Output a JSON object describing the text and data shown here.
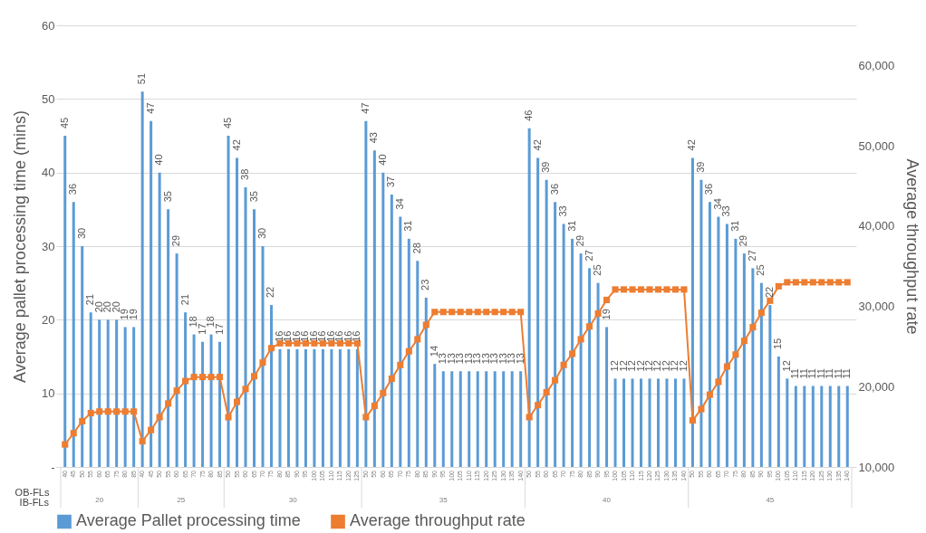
{
  "chart_data": {
    "type": "bar",
    "xlabel": "OB-FLs",
    "ylabel": "Average pallet processing time (mins)",
    "y2label": "Average throughput rate",
    "categories": [
      "40",
      "45",
      "50",
      "55",
      "60",
      "65",
      "75",
      "80",
      "85",
      "40",
      "45",
      "50",
      "55",
      "60",
      "65",
      "70",
      "75",
      "80",
      "85",
      "50",
      "55",
      "60",
      "65",
      "70",
      "75",
      "80",
      "85",
      "90",
      "95",
      "100",
      "105",
      "110",
      "115",
      "120",
      "125",
      "50",
      "55",
      "60",
      "65",
      "70",
      "75",
      "80",
      "85",
      "90",
      "95",
      "100",
      "105",
      "110",
      "115",
      "120",
      "125",
      "130",
      "135",
      "140",
      "50",
      "55",
      "60",
      "65",
      "70",
      "75",
      "80",
      "85",
      "90",
      "95",
      "100",
      "105",
      "110",
      "115",
      "120",
      "125",
      "130",
      "135",
      "140",
      "50",
      "55",
      "60",
      "65",
      "70",
      "75",
      "80",
      "85",
      "90",
      "95",
      "100",
      "105",
      "110",
      "115",
      "120",
      "125",
      "130",
      "135",
      "140"
    ],
    "series": [
      {
        "name": "Average Pallet processing time",
        "color": "#5b9bd5",
        "values": [
          45,
          36,
          30,
          21,
          20,
          20,
          20,
          19,
          19,
          51,
          47,
          40,
          35,
          29,
          21,
          18,
          17,
          18,
          17,
          45,
          42,
          38,
          35,
          30,
          22,
          16,
          16,
          16,
          16,
          16,
          16,
          16,
          16,
          16,
          16,
          47,
          43,
          40,
          37,
          34,
          31,
          28,
          23,
          14,
          13,
          13,
          13,
          13,
          13,
          13,
          13,
          13,
          13,
          13,
          46,
          42,
          39,
          36,
          33,
          31,
          29,
          27,
          25,
          19,
          12,
          12,
          12,
          12,
          12,
          12,
          12,
          12,
          12,
          42,
          39,
          36,
          34,
          33,
          31,
          29,
          27,
          25,
          22,
          15,
          12,
          11,
          11,
          11,
          11,
          11,
          11,
          11
        ],
        "value_labels": [
          "45",
          "36",
          "30",
          "21",
          "20",
          "20",
          "20",
          "19",
          "19",
          "51",
          "47",
          "40",
          "35",
          "29",
          "21",
          "18",
          "17",
          "18",
          "17",
          "45",
          "42",
          "38",
          "35",
          "30",
          "22",
          "16",
          "16",
          "16",
          "16",
          "16",
          "16",
          "16",
          "16",
          "16",
          "16",
          "47",
          "43",
          "40",
          "37",
          "34",
          "31",
          "28",
          "23",
          "14",
          "13",
          "13",
          "13",
          "13",
          "13",
          "13",
          "13",
          "13",
          "13",
          "13",
          "46",
          "42",
          "39",
          "36",
          "33",
          "31",
          "29",
          "27",
          "25",
          "19",
          "12",
          "12",
          "12",
          "12",
          "12",
          "12",
          "12",
          "12",
          "12",
          "42",
          "39",
          "36",
          "34",
          "33",
          "31",
          "29",
          "27",
          "25",
          "22",
          "15",
          "12",
          "11",
          "11",
          "11",
          "11",
          "11",
          "11",
          "11"
        ]
      },
      {
        "name": "Average throughput rate",
        "color": "#ed7d31",
        "type": "line",
        "axis": "y2",
        "values": [
          12800,
          14200,
          15700,
          16700,
          16900,
          16900,
          16900,
          16900,
          16900,
          13200,
          14600,
          16200,
          17900,
          19500,
          20700,
          21200,
          21200,
          21200,
          21200,
          16200,
          18100,
          19700,
          21300,
          23000,
          24800,
          25400,
          25400,
          25400,
          25400,
          25400,
          25400,
          25400,
          25400,
          25400,
          25400,
          16200,
          17600,
          19200,
          21000,
          22700,
          24400,
          25900,
          27700,
          29300,
          29300,
          29300,
          29300,
          29300,
          29300,
          29300,
          29300,
          29300,
          29300,
          29300,
          16200,
          17700,
          19300,
          20800,
          22700,
          24100,
          25900,
          27500,
          29100,
          30800,
          32100,
          32100,
          32100,
          32100,
          32100,
          32100,
          32100,
          32100,
          32100,
          15800,
          17200,
          19000,
          20600,
          22500,
          24000,
          25700,
          27400,
          29200,
          30700,
          32500,
          33000,
          33000,
          33000,
          33000,
          33000,
          33000,
          33000,
          33000
        ]
      }
    ],
    "ylim": [
      0,
      60
    ],
    "yticks": [
      {
        "value": 0,
        "label": "-"
      },
      10,
      20,
      30,
      40,
      50,
      60
    ],
    "y2lim": [
      10000,
      65000
    ],
    "y2ticks": [
      {
        "value": 10000,
        "label": "10,000"
      },
      {
        "value": 20000,
        "label": "20,000"
      },
      {
        "value": 30000,
        "label": "30,000"
      },
      {
        "value": 40000,
        "label": "40,000"
      },
      {
        "value": 50000,
        "label": "50,000"
      },
      {
        "value": 60000,
        "label": "60,000"
      }
    ],
    "annotations": [
      "IB-FLs",
      "20",
      "25",
      "30",
      "35",
      "40",
      "45"
    ],
    "grid": "y",
    "legend": "bottom",
    "marker": "square"
  }
}
